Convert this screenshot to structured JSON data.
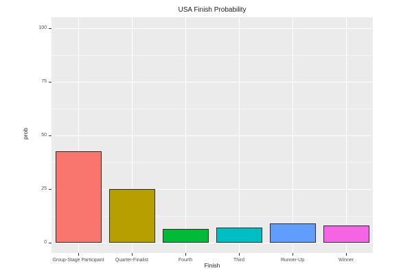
{
  "figure": {
    "title": "USA Finish Probability",
    "x_axis_label": "Finish",
    "y_axis_label": "prob"
  },
  "chart_data": {
    "type": "bar",
    "title": "USA Finish Probability",
    "xlabel": "Finish",
    "ylabel": "prob",
    "categories": [
      "Group-Stage Participant",
      "Quarter-Finalist",
      "Fourth",
      "Third",
      "Runner-Up",
      "Winner"
    ],
    "values": [
      42.6,
      25,
      6.4,
      7.1,
      9,
      8
    ],
    "bar_colors": [
      "#F8766D",
      "#B79F00",
      "#00BA38",
      "#00BFC4",
      "#619CFF",
      "#F564E3"
    ],
    "bar_border_color": "#2b2b2b",
    "ylim": [
      0,
      100
    ],
    "yticks": [
      0,
      25,
      50,
      75,
      100
    ],
    "minor_yticks": [
      12.5,
      37.5,
      62.5,
      87.5
    ],
    "grid": "on",
    "legend": "none",
    "panel_background": "#EBEBEB",
    "gridline_color": "#FFFFFF",
    "tick_label_color": "#4D4D4D",
    "bar_width_fraction": 0.9
  }
}
